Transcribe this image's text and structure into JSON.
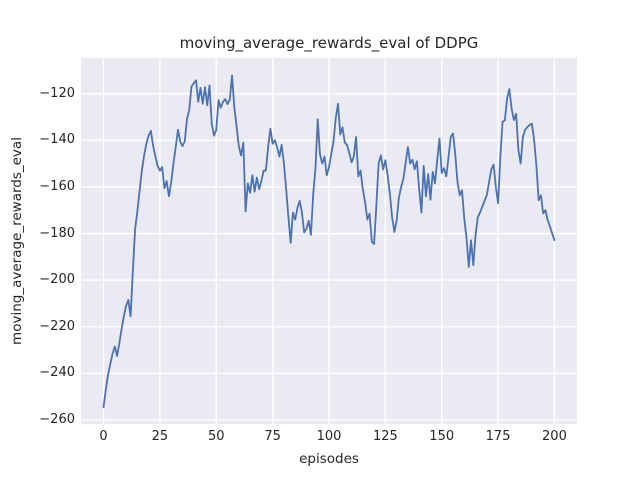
{
  "colors": {
    "axes_background": "#eaeaf2",
    "grid": "#ffffff",
    "line": "#4c72b0",
    "text": "#262626"
  },
  "chart_data": {
    "type": "line",
    "title": "moving_average_rewards_eval of DDPG",
    "xlabel": "episodes",
    "ylabel": "moving_average_rewards_eval",
    "grid": true,
    "legend": "none",
    "xlim": [
      -10,
      210
    ],
    "ylim": [
      -261.7,
      -104.7
    ],
    "x_ticks": [
      0,
      25,
      50,
      75,
      100,
      125,
      150,
      175,
      200
    ],
    "x_tick_labels": [
      "0",
      "25",
      "50",
      "75",
      "100",
      "125",
      "150",
      "175",
      "200"
    ],
    "y_ticks": [
      -260,
      -240,
      -220,
      -200,
      -180,
      -160,
      -140,
      -120
    ],
    "y_tick_labels": [
      "−260",
      "−240",
      "−220",
      "−200",
      "−180",
      "−160",
      "−140",
      "−120"
    ],
    "series": [
      {
        "name": "moving_average_rewards_eval",
        "x_start": 0,
        "x_step": 1,
        "values": [
          -254.5,
          -247,
          -240.5,
          -236,
          -231.5,
          -228.5,
          -232.5,
          -227,
          -221,
          -215.5,
          -211,
          -208.5,
          -215.5,
          -196,
          -178,
          -170.5,
          -161.5,
          -153,
          -146.5,
          -141.5,
          -138,
          -136,
          -142.5,
          -147,
          -151,
          -153,
          -151.5,
          -160.5,
          -157.5,
          -164,
          -158,
          -150,
          -143,
          -135.5,
          -140.5,
          -142.5,
          -140.5,
          -131,
          -127,
          -117,
          -115.5,
          -114.3,
          -123.5,
          -117.5,
          -124.3,
          -117.2,
          -125,
          -116.5,
          -133,
          -138,
          -135.5,
          -122.8,
          -126,
          -123.5,
          -122.3,
          -124.5,
          -122.5,
          -112.2,
          -126,
          -134,
          -142.5,
          -146.5,
          -141,
          -170.5,
          -158.5,
          -162.5,
          -155,
          -162,
          -156,
          -161,
          -157.5,
          -153,
          -153,
          -143,
          -135,
          -141.5,
          -140,
          -143,
          -147,
          -142,
          -150,
          -161,
          -173,
          -184,
          -171,
          -174,
          -169,
          -166,
          -171,
          -179.5,
          -178,
          -174.5,
          -180.5,
          -163,
          -152,
          -131,
          -146,
          -150,
          -147,
          -155,
          -151.5,
          -146,
          -140.5,
          -130.5,
          -124.3,
          -137.5,
          -134.5,
          -141,
          -142,
          -145.5,
          -149.5,
          -147,
          -138.6,
          -155.5,
          -153,
          -161,
          -166.5,
          -174,
          -171.5,
          -183.5,
          -184.5,
          -168,
          -150,
          -146.5,
          -152.5,
          -148.6,
          -155,
          -163,
          -173,
          -179.3,
          -174.5,
          -164.5,
          -160,
          -156.5,
          -149.5,
          -142.9,
          -150,
          -148.3,
          -152.4,
          -149,
          -161,
          -171,
          -151,
          -164,
          -154.5,
          -165.5,
          -153.5,
          -158.5,
          -148.5,
          -139.3,
          -154,
          -152,
          -155.5,
          -147.5,
          -138.5,
          -137.1,
          -146,
          -158,
          -163.6,
          -161.4,
          -173.6,
          -182,
          -194.3,
          -182.9,
          -193.6,
          -180.7,
          -173,
          -171,
          -168.5,
          -166,
          -163.5,
          -158,
          -152.5,
          -150.4,
          -160,
          -167,
          -147,
          -132,
          -131.5,
          -122,
          -118,
          -126.5,
          -131.3,
          -128.6,
          -144,
          -150,
          -138.5,
          -135.5,
          -134.3,
          -133.4,
          -132.9,
          -140,
          -151,
          -165.7,
          -163.6,
          -171.4,
          -170,
          -174.3,
          -177,
          -180,
          -182.8
        ]
      }
    ]
  }
}
